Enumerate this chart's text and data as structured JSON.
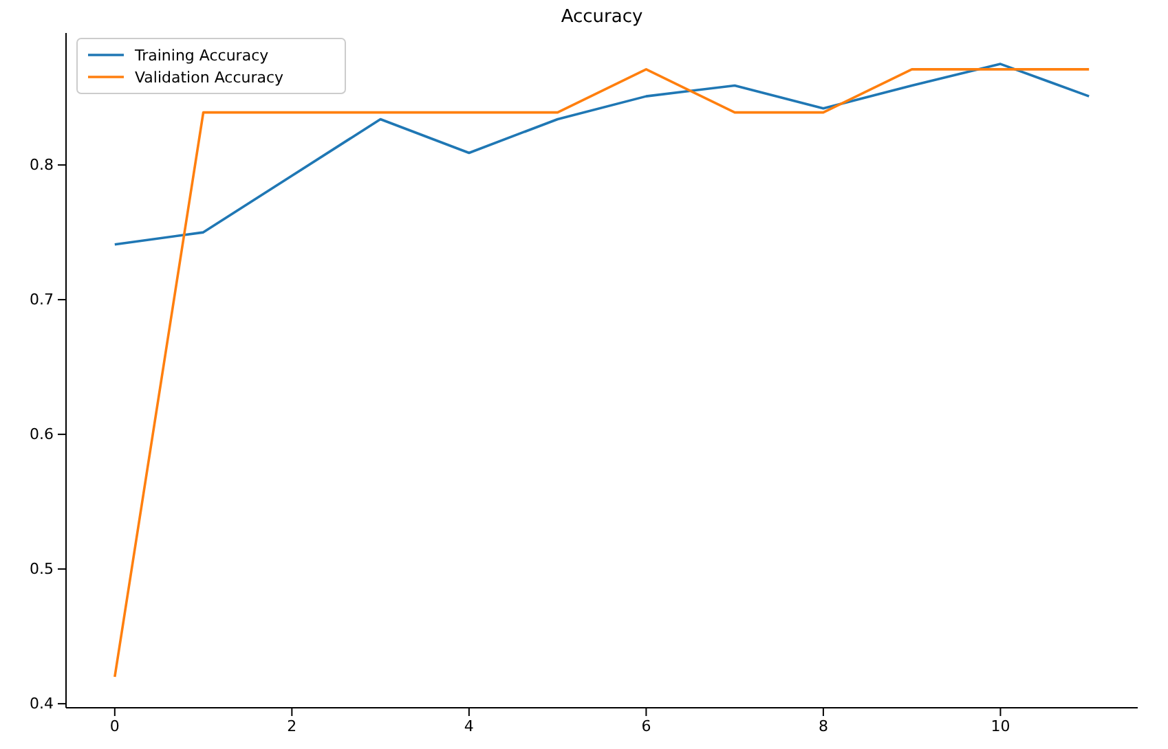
{
  "chart_data": {
    "type": "line",
    "title": "Accuracy",
    "x": [
      0,
      1,
      2,
      3,
      4,
      5,
      6,
      7,
      8,
      9,
      10,
      11
    ],
    "series": [
      {
        "name": "Training Accuracy",
        "color": "#1f77b4",
        "values": [
          0.741,
          0.75,
          0.792,
          0.834,
          0.809,
          0.834,
          0.851,
          0.859,
          0.842,
          0.859,
          0.875,
          0.851
        ]
      },
      {
        "name": "Validation Accuracy",
        "color": "#ff7f0e",
        "values": [
          0.42,
          0.839,
          0.839,
          0.839,
          0.839,
          0.839,
          0.871,
          0.839,
          0.839,
          0.871,
          0.871,
          0.871
        ]
      }
    ],
    "xlim": [
      -0.55,
      11.55
    ],
    "xticks": [
      0,
      2,
      4,
      6,
      8,
      10
    ],
    "ylim": [
      0.397,
      0.898
    ],
    "yticks": [
      0.4,
      0.5,
      0.6,
      0.7,
      0.8
    ],
    "grid": false,
    "legend": "top left",
    "line_style": "solid",
    "marker": "none"
  }
}
